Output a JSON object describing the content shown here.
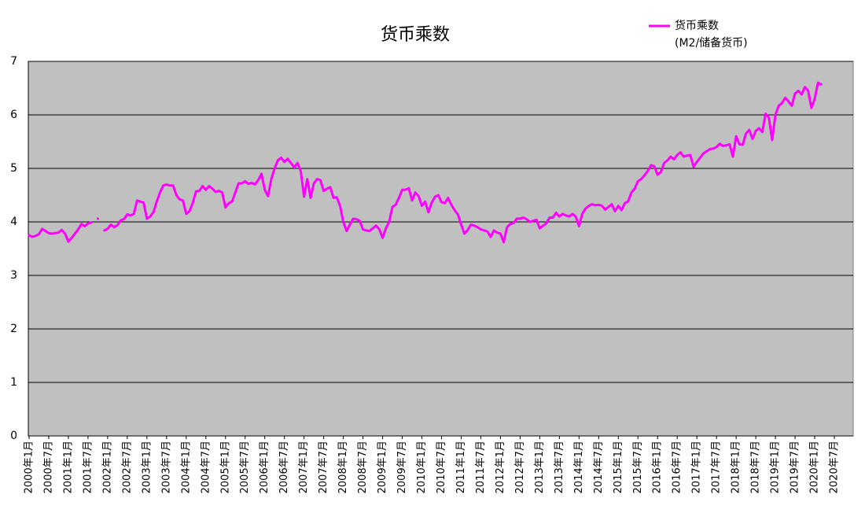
{
  "chart_data": {
    "type": "line",
    "title": "货币乘数",
    "legend_subtitle": "(M2/储备货币)",
    "categories": [
      "2000年1月",
      null,
      null,
      null,
      null,
      null,
      "2000年7月",
      null,
      null,
      null,
      null,
      null,
      "2001年1月",
      null,
      null,
      null,
      null,
      null,
      "2001年7月",
      null,
      null,
      null,
      null,
      null,
      "2002年1月",
      null,
      null,
      null,
      null,
      null,
      "2002年7月",
      null,
      null,
      null,
      null,
      null,
      "2003年1月",
      null,
      null,
      null,
      null,
      null,
      "2003年7月",
      null,
      null,
      null,
      null,
      null,
      "2004年1月",
      null,
      null,
      null,
      null,
      null,
      "2004年7月",
      null,
      null,
      null,
      null,
      null,
      "2005年1月",
      null,
      null,
      null,
      null,
      null,
      "2005年7月",
      null,
      null,
      null,
      null,
      null,
      "2006年1月",
      null,
      null,
      null,
      null,
      null,
      "2006年7月",
      null,
      null,
      null,
      null,
      null,
      "2007年1月",
      null,
      null,
      null,
      null,
      null,
      "2007年7月",
      null,
      null,
      null,
      null,
      null,
      "2008年1月",
      null,
      null,
      null,
      null,
      null,
      "2008年7月",
      null,
      null,
      null,
      null,
      null,
      "2009年1月",
      null,
      null,
      null,
      null,
      null,
      "2009年7月",
      null,
      null,
      null,
      null,
      null,
      "2010年1月",
      null,
      null,
      null,
      null,
      null,
      "2010年7月",
      null,
      null,
      null,
      null,
      null,
      "2011年1月",
      null,
      null,
      null,
      null,
      null,
      "2011年7月",
      null,
      null,
      null,
      null,
      null,
      "2012年1月",
      null,
      null,
      null,
      null,
      null,
      "2012年7月",
      null,
      null,
      null,
      null,
      null,
      "2013年1月",
      null,
      null,
      null,
      null,
      null,
      "2013年7月",
      null,
      null,
      null,
      null,
      null,
      "2014年1月",
      null,
      null,
      null,
      null,
      null,
      "2014年7月",
      null,
      null,
      null,
      null,
      null,
      "2015年1月",
      null,
      null,
      null,
      null,
      null,
      "2015年7月",
      null,
      null,
      null,
      null,
      null,
      "2016年1月",
      null,
      null,
      null,
      null,
      null,
      "2016年7月",
      null,
      null,
      null,
      null,
      null,
      "2017年1月",
      null,
      null,
      null,
      null,
      null,
      "2017年7月",
      null,
      null,
      null,
      null,
      null,
      "2018年1月",
      null,
      null,
      null,
      null,
      null,
      "2018年7月",
      null,
      null,
      null,
      null,
      null,
      "2019年1月",
      null,
      null,
      null,
      null,
      null,
      "2019年7月",
      null,
      null,
      null,
      null,
      null,
      "2020年1月",
      null,
      null,
      null,
      null,
      null,
      "2020年7月",
      null,
      null,
      null,
      null,
      null
    ],
    "series": [
      {
        "name": "货币乘数",
        "color": "#ff00ff",
        "values": [
          3.75,
          3.72,
          3.74,
          3.77,
          3.87,
          3.83,
          3.79,
          3.78,
          3.79,
          3.8,
          3.85,
          3.78,
          3.63,
          3.7,
          3.78,
          3.86,
          3.96,
          3.92,
          3.97,
          3.99,
          null,
          4.06,
          null,
          3.84,
          3.87,
          3.95,
          3.9,
          3.94,
          4.03,
          4.05,
          4.14,
          4.12,
          4.15,
          4.4,
          4.38,
          4.36,
          4.06,
          4.1,
          4.18,
          4.38,
          4.55,
          4.68,
          4.7,
          4.68,
          4.68,
          4.5,
          4.42,
          4.4,
          4.15,
          4.2,
          4.35,
          4.57,
          4.58,
          4.67,
          4.6,
          4.67,
          4.62,
          4.56,
          4.58,
          4.55,
          4.27,
          4.35,
          4.38,
          4.55,
          4.72,
          4.72,
          4.76,
          4.71,
          4.73,
          4.7,
          4.78,
          4.9,
          4.6,
          4.48,
          4.8,
          5.0,
          5.15,
          5.2,
          5.12,
          5.18,
          5.1,
          5.02,
          5.1,
          4.95,
          4.47,
          4.8,
          4.45,
          4.72,
          4.8,
          4.78,
          4.58,
          4.62,
          4.65,
          4.45,
          4.46,
          4.3,
          4.0,
          3.83,
          3.95,
          4.06,
          4.05,
          4.02,
          3.86,
          3.84,
          3.83,
          3.88,
          3.93,
          3.86,
          3.7,
          3.88,
          4.0,
          4.28,
          4.32,
          4.45,
          4.6,
          4.6,
          4.63,
          4.4,
          4.55,
          4.48,
          4.3,
          4.38,
          4.18,
          4.36,
          4.47,
          4.5,
          4.37,
          4.35,
          4.45,
          4.32,
          4.22,
          4.14,
          3.95,
          3.78,
          3.85,
          3.95,
          3.93,
          3.9,
          3.86,
          3.84,
          3.82,
          3.72,
          3.84,
          3.8,
          3.78,
          3.62,
          3.9,
          3.96,
          3.98,
          4.06,
          4.06,
          4.08,
          4.05,
          4.0,
          4.02,
          4.04,
          3.88,
          3.93,
          3.97,
          4.08,
          4.08,
          4.17,
          4.1,
          4.15,
          4.12,
          4.1,
          4.15,
          4.1,
          3.92,
          4.15,
          4.25,
          4.3,
          4.33,
          4.31,
          4.32,
          4.3,
          4.23,
          4.28,
          4.33,
          4.2,
          4.3,
          4.22,
          4.35,
          4.38,
          4.55,
          4.62,
          4.76,
          4.8,
          4.87,
          4.95,
          5.06,
          5.04,
          4.88,
          4.93,
          5.1,
          5.15,
          5.22,
          5.17,
          5.25,
          5.3,
          5.22,
          5.24,
          5.25,
          5.03,
          5.12,
          5.2,
          5.28,
          5.32,
          5.36,
          5.37,
          5.4,
          5.46,
          5.42,
          5.43,
          5.45,
          5.22,
          5.6,
          5.45,
          5.44,
          5.65,
          5.72,
          5.55,
          5.7,
          5.75,
          5.68,
          6.02,
          5.95,
          5.53,
          6.0,
          6.17,
          6.22,
          6.32,
          6.25,
          6.17,
          6.4,
          6.45,
          6.38,
          6.52,
          6.45,
          6.13,
          6.3,
          6.6,
          6.57,
          null,
          null,
          null,
          null,
          null,
          null,
          null,
          null,
          null
        ]
      }
    ],
    "ylim": [
      0,
      7
    ],
    "yticks": [
      0,
      1,
      2,
      3,
      4,
      5,
      6,
      7
    ],
    "grid": true,
    "plot_background": "#c0c0c0"
  }
}
